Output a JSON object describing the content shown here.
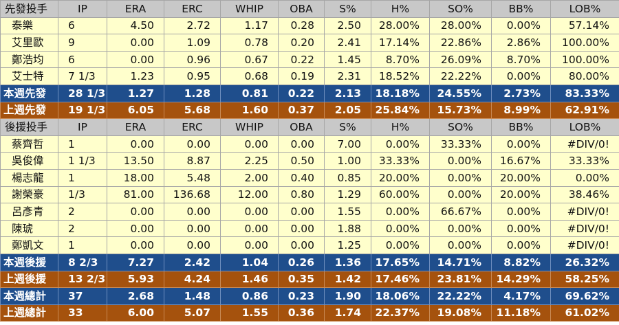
{
  "starters": {
    "headers": [
      "先發投手",
      "IP",
      "ERA",
      "ERC",
      "WHIP",
      "OBA",
      "S%",
      "H%",
      "SO%",
      "BB%",
      "LOB%"
    ],
    "rows": [
      [
        "泰樂",
        "6",
        "4.50",
        "2.72",
        "1.17",
        "0.28",
        "2.50",
        "28.00%",
        "28.00%",
        "0.00%",
        "57.14%"
      ],
      [
        "艾里歐",
        "9",
        "0.00",
        "1.09",
        "0.78",
        "0.20",
        "2.41",
        "17.14%",
        "22.86%",
        "2.86%",
        "100.00%"
      ],
      [
        "鄭浩均",
        "6",
        "0.00",
        "0.96",
        "0.67",
        "0.22",
        "1.45",
        "8.70%",
        "26.09%",
        "8.70%",
        "100.00%"
      ],
      [
        "艾士特",
        "7 1/3",
        "1.23",
        "0.95",
        "0.68",
        "0.19",
        "2.31",
        "18.52%",
        "22.22%",
        "0.00%",
        "80.00%"
      ]
    ],
    "this_week": [
      "本週先發",
      "28 1/3",
      "1.27",
      "1.28",
      "0.81",
      "0.22",
      "2.13",
      "18.18%",
      "24.55%",
      "2.73%",
      "83.33%"
    ],
    "last_week": [
      "上週先發",
      "19 1/3",
      "6.05",
      "5.68",
      "1.60",
      "0.37",
      "2.05",
      "25.84%",
      "15.73%",
      "8.99%",
      "62.91%"
    ]
  },
  "relievers": {
    "headers": [
      "後援投手",
      "IP",
      "ERA",
      "ERC",
      "WHIP",
      "OBA",
      "S%",
      "H%",
      "SO%",
      "BB%",
      "LOB%"
    ],
    "rows": [
      [
        "蔡齊哲",
        "1",
        "0.00",
        "0.00",
        "0.00",
        "0.00",
        "7.00",
        "0.00%",
        "33.33%",
        "0.00%",
        "#DIV/0!"
      ],
      [
        "吳俊偉",
        "1 1/3",
        "13.50",
        "8.87",
        "2.25",
        "0.50",
        "1.00",
        "33.33%",
        "0.00%",
        "16.67%",
        "33.33%"
      ],
      [
        "楊志龍",
        "1",
        "18.00",
        "5.48",
        "2.00",
        "0.40",
        "0.85",
        "20.00%",
        "0.00%",
        "20.00%",
        "0.00%"
      ],
      [
        "謝榮豪",
        "1/3",
        "81.00",
        "136.68",
        "12.00",
        "0.80",
        "1.29",
        "60.00%",
        "0.00%",
        "20.00%",
        "38.46%"
      ],
      [
        "呂彥青",
        "2",
        "0.00",
        "0.00",
        "0.00",
        "0.00",
        "1.55",
        "0.00%",
        "66.67%",
        "0.00%",
        "#DIV/0!"
      ],
      [
        "陳琥",
        "2",
        "0.00",
        "0.00",
        "0.00",
        "0.00",
        "1.88",
        "0.00%",
        "0.00%",
        "0.00%",
        "#DIV/0!"
      ],
      [
        "鄭凱文",
        "1",
        "0.00",
        "0.00",
        "0.00",
        "0.00",
        "1.25",
        "0.00%",
        "0.00%",
        "0.00%",
        "#DIV/0!"
      ]
    ],
    "this_week": [
      "本週後援",
      "8 2/3",
      "7.27",
      "2.42",
      "1.04",
      "0.26",
      "1.36",
      "17.65%",
      "14.71%",
      "8.82%",
      "26.32%"
    ],
    "last_week": [
      "上週後援",
      "13 2/3",
      "5.93",
      "4.24",
      "1.46",
      "0.35",
      "1.42",
      "17.46%",
      "23.81%",
      "14.29%",
      "58.25%"
    ]
  },
  "totals": {
    "this_week": [
      "本週總計",
      "37",
      "2.68",
      "1.48",
      "0.86",
      "0.23",
      "1.90",
      "18.06%",
      "22.22%",
      "4.17%",
      "69.62%"
    ],
    "last_week": [
      "上週總計",
      "33",
      "6.00",
      "5.07",
      "1.55",
      "0.36",
      "1.74",
      "22.37%",
      "19.08%",
      "11.18%",
      "61.02%"
    ]
  }
}
